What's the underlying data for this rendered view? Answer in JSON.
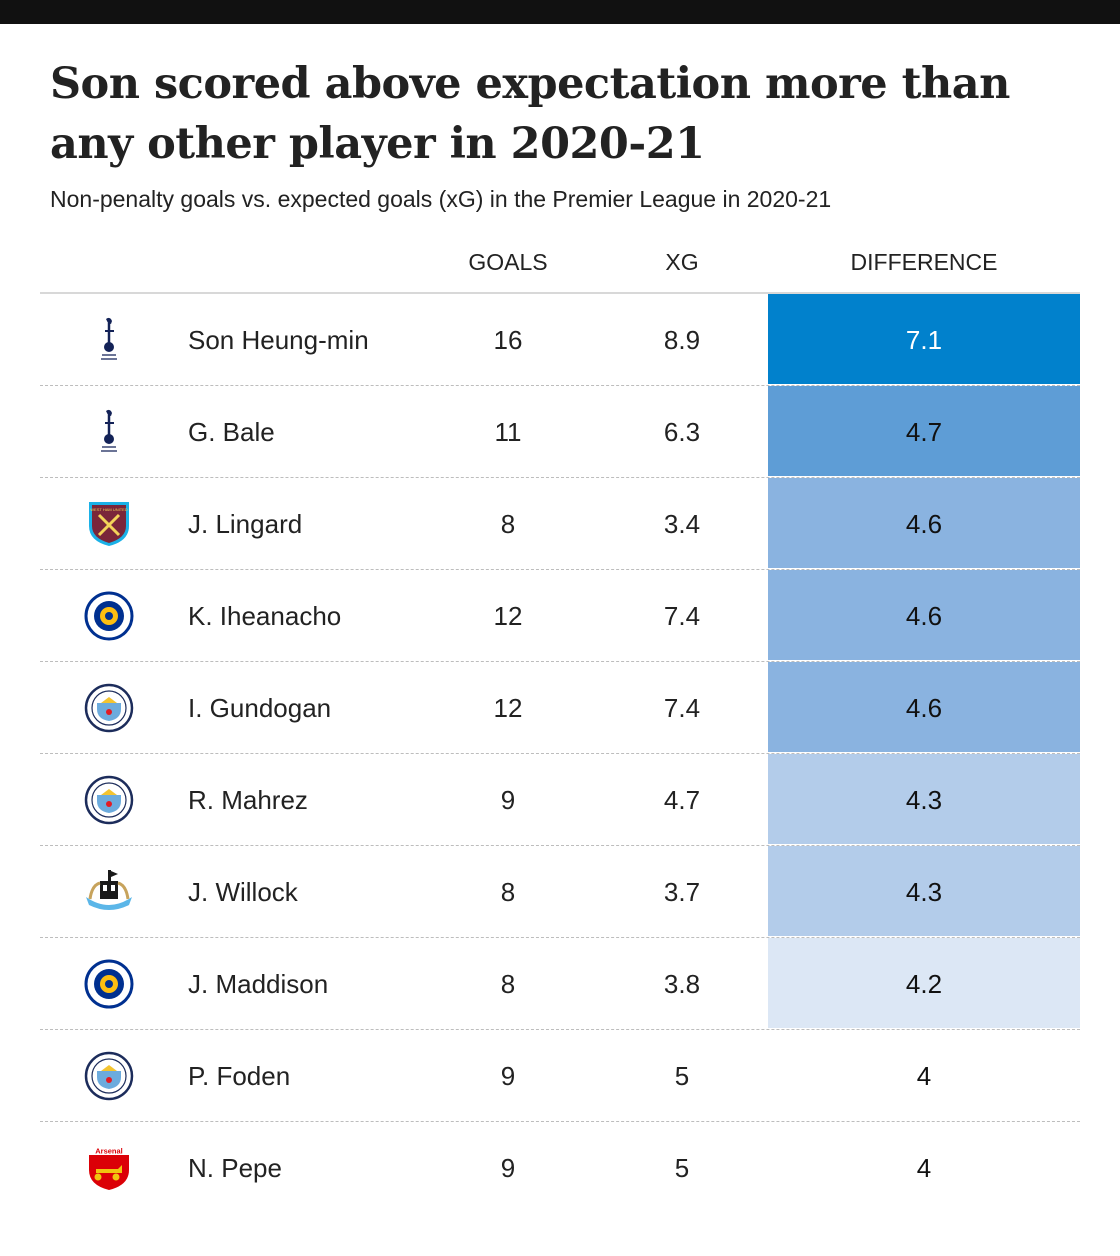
{
  "title": "Son scored above expectation more than any other player in 2020-21",
  "subtitle": "Non-penalty goals vs. expected goals (xG) in the Premier League in 2020-21",
  "colors": {
    "top_bar": "#111111",
    "diff_scale": [
      "#0181cc",
      "#5e9dd6",
      "#8ab3e0",
      "#b3ccea",
      "#dce7f5"
    ],
    "row_separator": "#bdbdbd"
  },
  "chart_data": {
    "type": "table",
    "columns": [
      "GOALS",
      "XG",
      "DIFFERENCE"
    ],
    "rows": [
      {
        "crest": "tottenham-crest-icon",
        "player": "Son Heung-min",
        "goals": "16",
        "xg": "8.9",
        "difference": "7.1",
        "fill": "#0181cc",
        "text_color": "#ffffff"
      },
      {
        "crest": "tottenham-crest-icon",
        "player": "G. Bale",
        "goals": "11",
        "xg": "6.3",
        "difference": "4.7",
        "fill": "#5e9dd6",
        "text_color": "#111111"
      },
      {
        "crest": "west-ham-crest-icon",
        "player": "J. Lingard",
        "goals": "8",
        "xg": "3.4",
        "difference": "4.6",
        "fill": "#8ab3e0",
        "text_color": "#111111"
      },
      {
        "crest": "leicester-crest-icon",
        "player": "K. Iheanacho",
        "goals": "12",
        "xg": "7.4",
        "difference": "4.6",
        "fill": "#8ab3e0",
        "text_color": "#111111"
      },
      {
        "crest": "man-city-crest-icon",
        "player": "I. Gundogan",
        "goals": "12",
        "xg": "7.4",
        "difference": "4.6",
        "fill": "#8ab3e0",
        "text_color": "#111111"
      },
      {
        "crest": "man-city-crest-icon",
        "player": "R. Mahrez",
        "goals": "9",
        "xg": "4.7",
        "difference": "4.3",
        "fill": "#b3ccea",
        "text_color": "#111111"
      },
      {
        "crest": "newcastle-crest-icon",
        "player": "J. Willock",
        "goals": "8",
        "xg": "3.7",
        "difference": "4.3",
        "fill": "#b3ccea",
        "text_color": "#111111"
      },
      {
        "crest": "leicester-crest-icon",
        "player": "J. Maddison",
        "goals": "8",
        "xg": "3.8",
        "difference": "4.2",
        "fill": "#dce7f5",
        "text_color": "#111111"
      },
      {
        "crest": "man-city-crest-icon",
        "player": "P. Foden",
        "goals": "9",
        "xg": "5",
        "difference": "4",
        "fill": "",
        "text_color": "#111111"
      },
      {
        "crest": "arsenal-crest-icon",
        "player": "N. Pepe",
        "goals": "9",
        "xg": "5",
        "difference": "4",
        "fill": "",
        "text_color": "#111111"
      }
    ]
  },
  "crest_text": {
    "west_ham": "WEST HAM UNITED",
    "arsenal": "Arsenal"
  }
}
